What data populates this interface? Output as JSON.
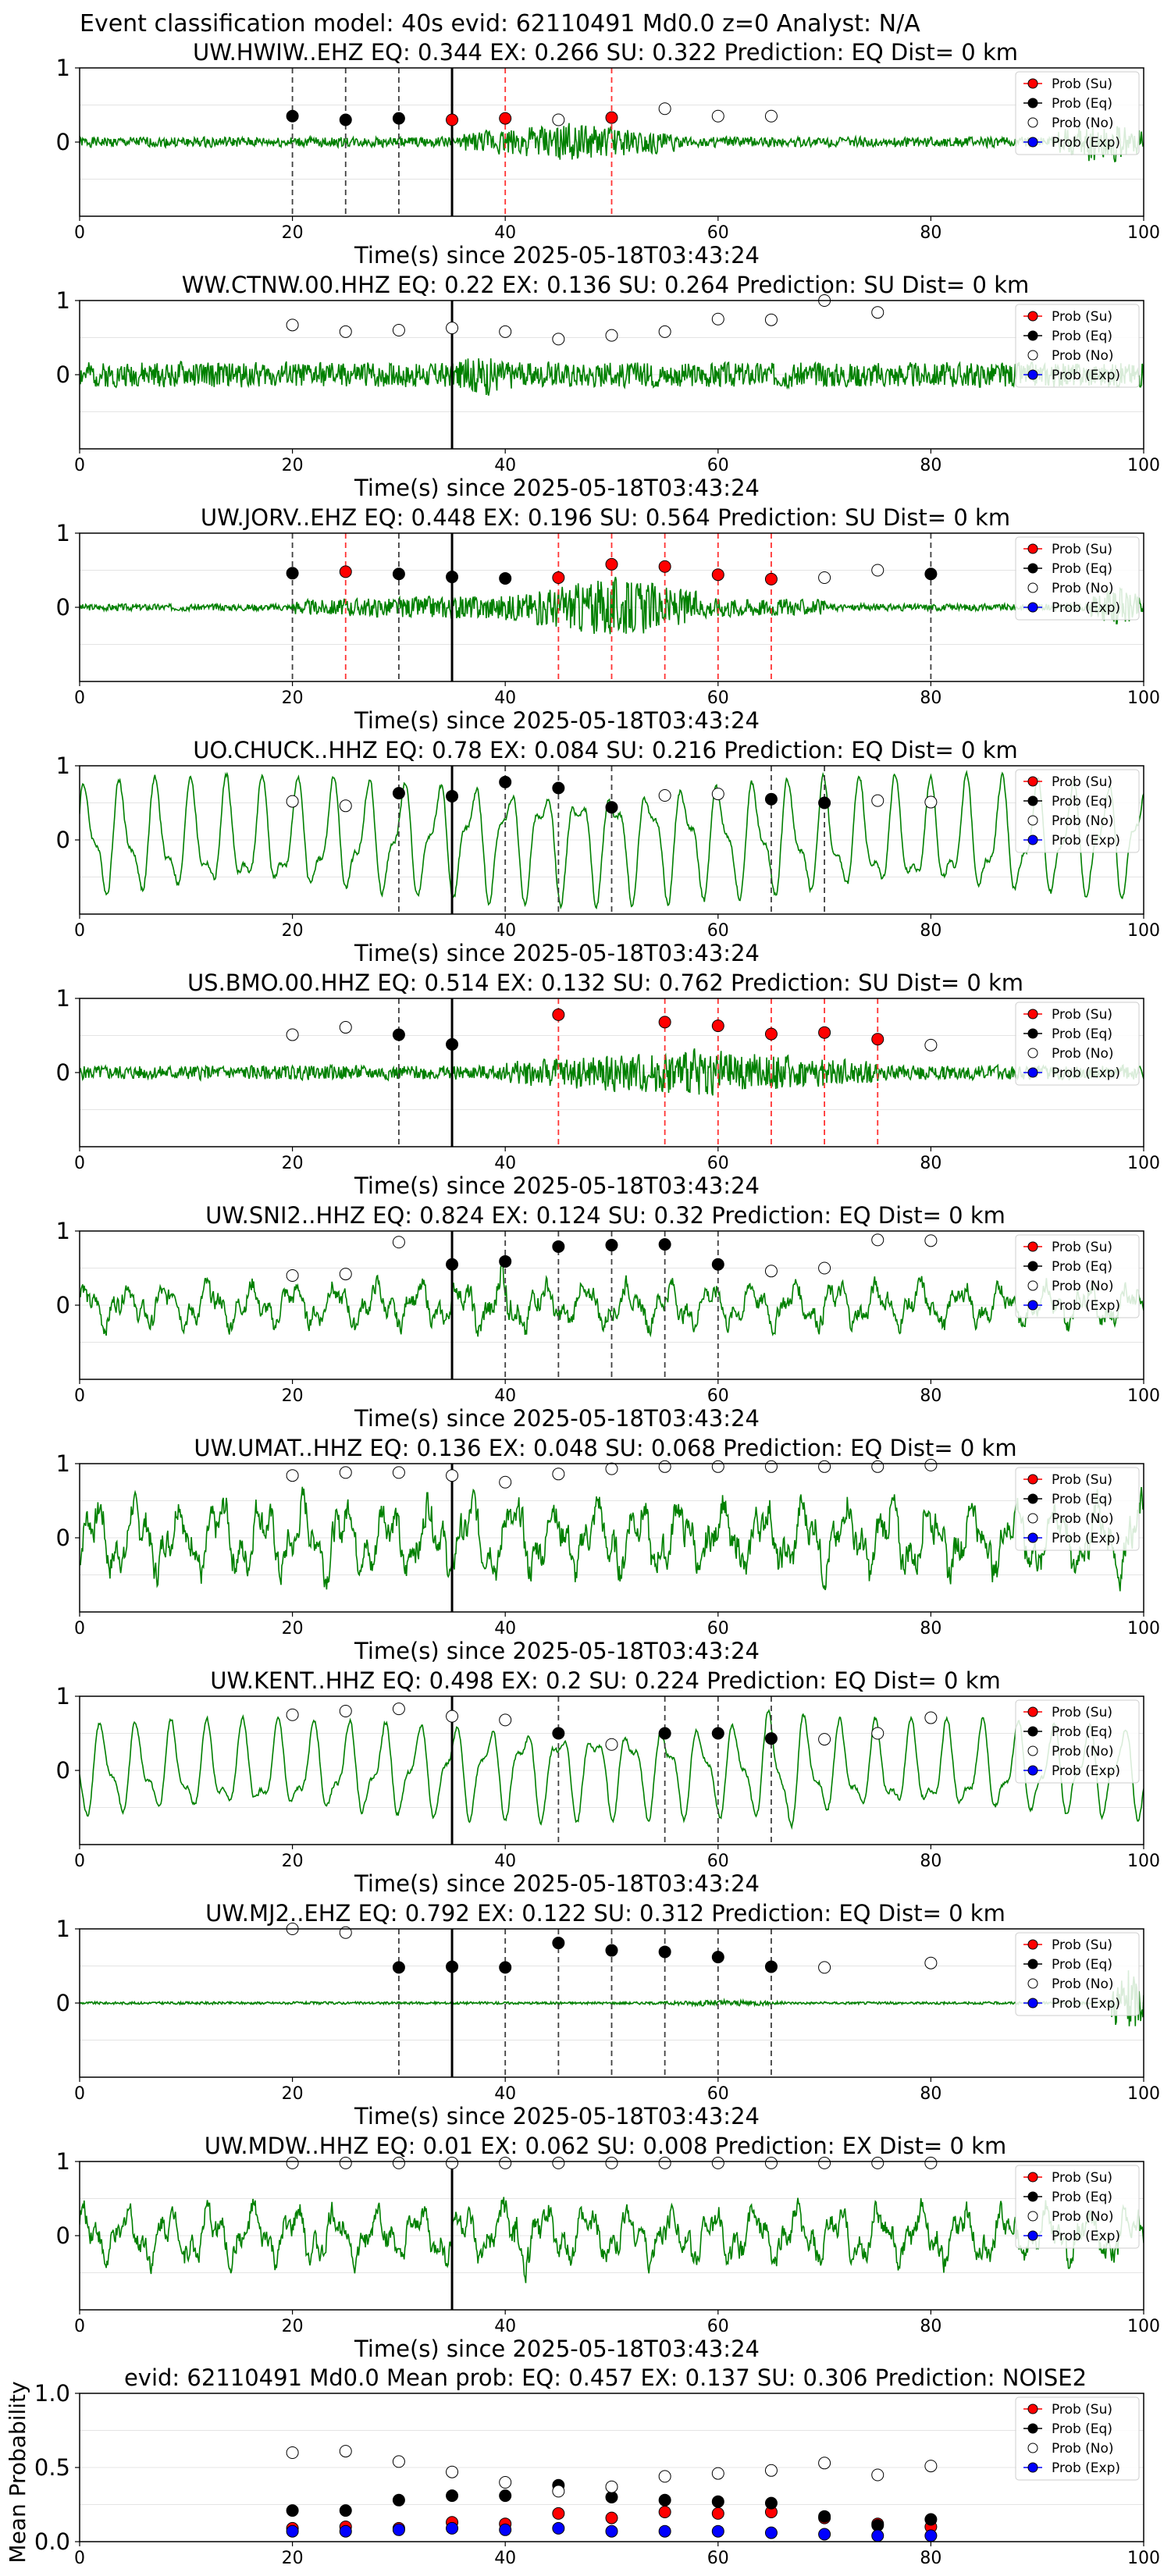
{
  "figure_title": "Event classification model: 40s evid: 62110491 Md0.0 z=0 Analyst: N/A",
  "legend_labels": [
    "Prob (Su)",
    "Prob (Eq)",
    "Prob (No)",
    "Prob (Exp)"
  ],
  "colors": {
    "su": "#ff0000",
    "eq": "#000000",
    "no": "#ffffff",
    "exp": "#0000ff",
    "waveform": "#008000",
    "su_line": "#ff3333",
    "eq_line": "#404040"
  },
  "chart_data": [
    {
      "type": "line",
      "title": "UW.HWIW..EHZ   EQ: 0.344   EX: 0.266   SU: 0.322   Prediction: EQ    Dist= 0 km",
      "xlabel": "Time(s) since 2025-05-18T03:43:24",
      "xlim": [
        0,
        100
      ],
      "ylim": [
        -1,
        1
      ],
      "xticks": [
        "0",
        "20",
        "40",
        "60",
        "80",
        "100"
      ],
      "yticks": [
        "0",
        "1"
      ],
      "waveform": {
        "style": "noisy",
        "seed": 1,
        "amp": 0.12,
        "burst": [
          [
            36,
            56,
            0.45
          ],
          [
            92,
            100,
            0.55
          ]
        ]
      },
      "origin_line": 35,
      "eq_lines": [
        20,
        25,
        30
      ],
      "su_lines": [
        40,
        50
      ],
      "series": [
        {
          "name": "Prob (Su)",
          "x": [
            35,
            40,
            50
          ],
          "y": [
            0.3,
            0.32,
            0.33
          ]
        },
        {
          "name": "Prob (Eq)",
          "x": [
            20,
            25,
            30
          ],
          "y": [
            0.35,
            0.3,
            0.32
          ]
        },
        {
          "name": "Prob (No)",
          "x": [
            45,
            55,
            60,
            65
          ],
          "y": [
            0.3,
            0.45,
            0.35,
            0.35
          ]
        },
        {
          "name": "Prob (Exp)",
          "x": [],
          "y": []
        }
      ]
    },
    {
      "type": "line",
      "title": "WW.CTNW.00.HHZ   EQ: 0.22  EX: 0.136  SU: 0.264   Prediction: SU    Dist= 0 km",
      "xlabel": "Time(s) since 2025-05-18T03:43:24",
      "xlim": [
        0,
        100
      ],
      "ylim": [
        -1,
        1
      ],
      "xticks": [
        "0",
        "20",
        "40",
        "60",
        "80",
        "100"
      ],
      "yticks": [
        "0",
        "1"
      ],
      "waveform": {
        "style": "noisy",
        "seed": 2,
        "amp": 0.3,
        "burst": [
          [
            34,
            42,
            0.5
          ]
        ]
      },
      "origin_line": 35,
      "eq_lines": [],
      "su_lines": [],
      "series": [
        {
          "name": "Prob (Su)",
          "x": [],
          "y": []
        },
        {
          "name": "Prob (Eq)",
          "x": [],
          "y": []
        },
        {
          "name": "Prob (No)",
          "x": [
            20,
            25,
            30,
            35,
            40,
            45,
            50,
            55,
            60,
            65,
            70,
            75
          ],
          "y": [
            0.67,
            0.58,
            0.6,
            0.63,
            0.58,
            0.48,
            0.53,
            0.58,
            0.75,
            0.74,
            1.0,
            0.84
          ]
        },
        {
          "name": "Prob (Exp)",
          "x": [],
          "y": []
        }
      ]
    },
    {
      "type": "line",
      "title": "UW.JORV..EHZ   EQ: 0.448  EX: 0.196  SU: 0.564   Prediction: SU    Dist= 0 km",
      "xlabel": "Time(s) since 2025-05-18T03:43:24",
      "xlim": [
        0,
        100
      ],
      "ylim": [
        -1,
        1
      ],
      "xticks": [
        "0",
        "20",
        "40",
        "60",
        "80",
        "100"
      ],
      "yticks": [
        "0",
        "1"
      ],
      "waveform": {
        "style": "noisy",
        "seed": 3,
        "amp": 0.08,
        "burst": [
          [
            20,
            70,
            0.35
          ],
          [
            42,
            58,
            0.75
          ],
          [
            95,
            100,
            0.5
          ]
        ]
      },
      "origin_line": 35,
      "eq_lines": [
        20,
        30,
        80
      ],
      "su_lines": [
        25,
        45,
        50,
        55,
        60,
        65
      ],
      "series": [
        {
          "name": "Prob (Su)",
          "x": [
            25,
            45,
            50,
            55,
            60,
            65
          ],
          "y": [
            0.48,
            0.4,
            0.58,
            0.55,
            0.44,
            0.38
          ]
        },
        {
          "name": "Prob (Eq)",
          "x": [
            20,
            30,
            35,
            40,
            80
          ],
          "y": [
            0.46,
            0.45,
            0.41,
            0.39,
            0.45
          ]
        },
        {
          "name": "Prob (No)",
          "x": [
            70,
            75
          ],
          "y": [
            0.4,
            0.5
          ]
        },
        {
          "name": "Prob (Exp)",
          "x": [],
          "y": []
        }
      ]
    },
    {
      "type": "line",
      "title": "UO.CHUCK..HHZ   EQ: 0.78  EX: 0.084  SU: 0.216   Prediction: EQ    Dist= 0 km",
      "xlabel": "Time(s) since 2025-05-18T03:43:24",
      "xlim": [
        0,
        100
      ],
      "ylim": [
        -1,
        1
      ],
      "xticks": [
        "0",
        "20",
        "40",
        "60",
        "80",
        "100"
      ],
      "yticks": [
        "0",
        "1"
      ],
      "waveform": {
        "style": "smooth",
        "seed": 4,
        "amp": 0.75,
        "burst": []
      },
      "origin_line": 35,
      "eq_lines": [
        30,
        40,
        45,
        50,
        65,
        70
      ],
      "su_lines": [],
      "series": [
        {
          "name": "Prob (Su)",
          "x": [],
          "y": []
        },
        {
          "name": "Prob (Eq)",
          "x": [
            30,
            35,
            40,
            45,
            50,
            65,
            70
          ],
          "y": [
            0.63,
            0.59,
            0.78,
            0.7,
            0.44,
            0.55,
            0.5
          ]
        },
        {
          "name": "Prob (No)",
          "x": [
            20,
            25,
            55,
            60,
            75,
            80
          ],
          "y": [
            0.52,
            0.46,
            0.6,
            0.62,
            0.53,
            0.51
          ]
        },
        {
          "name": "Prob (Exp)",
          "x": [],
          "y": []
        }
      ]
    },
    {
      "type": "line",
      "title": "US.BMO.00.HHZ   EQ: 0.514  EX: 0.132  SU: 0.762   Prediction: SU    Dist= 0 km",
      "xlabel": "Time(s) since 2025-05-18T03:43:24",
      "xlim": [
        0,
        100
      ],
      "ylim": [
        -1,
        1
      ],
      "xticks": [
        "0",
        "20",
        "40",
        "60",
        "80",
        "100"
      ],
      "yticks": [
        "0",
        "1"
      ],
      "waveform": {
        "style": "noisy",
        "seed": 5,
        "amp": 0.17,
        "burst": [
          [
            40,
            75,
            0.55
          ]
        ]
      },
      "origin_line": 35,
      "eq_lines": [
        30
      ],
      "su_lines": [
        45,
        55,
        60,
        65,
        70,
        75
      ],
      "series": [
        {
          "name": "Prob (Su)",
          "x": [
            45,
            55,
            60,
            65,
            70,
            75
          ],
          "y": [
            0.78,
            0.68,
            0.63,
            0.52,
            0.54,
            0.45
          ]
        },
        {
          "name": "Prob (Eq)",
          "x": [
            30,
            35
          ],
          "y": [
            0.51,
            0.38
          ]
        },
        {
          "name": "Prob (No)",
          "x": [
            20,
            25,
            80
          ],
          "y": [
            0.51,
            0.61,
            0.37
          ]
        },
        {
          "name": "Prob (Exp)",
          "x": [],
          "y": []
        }
      ]
    },
    {
      "type": "line",
      "title": "UW.SNI2..HHZ   EQ: 0.824  EX: 0.124  SU: 0.32   Prediction: EQ    Dist= 0 km",
      "xlabel": "Time(s) since 2025-05-18T03:43:24",
      "xlim": [
        0,
        100
      ],
      "ylim": [
        -1,
        1
      ],
      "xticks": [
        "0",
        "20",
        "40",
        "60",
        "80",
        "100"
      ],
      "yticks": [
        "0",
        "1"
      ],
      "waveform": {
        "style": "mixed",
        "seed": 6,
        "amp": 0.35,
        "burst": [
          [
            35,
            45,
            0.6
          ]
        ]
      },
      "origin_line": 35,
      "eq_lines": [
        40,
        45,
        50,
        55,
        60
      ],
      "su_lines": [],
      "series": [
        {
          "name": "Prob (Su)",
          "x": [],
          "y": []
        },
        {
          "name": "Prob (Eq)",
          "x": [
            35,
            40,
            45,
            50,
            55,
            60
          ],
          "y": [
            0.55,
            0.59,
            0.79,
            0.81,
            0.82,
            0.55
          ]
        },
        {
          "name": "Prob (No)",
          "x": [
            20,
            25,
            30,
            65,
            70,
            75,
            80
          ],
          "y": [
            0.4,
            0.42,
            0.85,
            0.46,
            0.5,
            0.88,
            0.87
          ]
        },
        {
          "name": "Prob (Exp)",
          "x": [],
          "y": []
        }
      ]
    },
    {
      "type": "line",
      "title": "UW.UMAT..HHZ   EQ: 0.136  EX: 0.048  SU: 0.068   Prediction: EQ    Dist= 0 km",
      "xlabel": "Time(s) since 2025-05-18T03:43:24",
      "xlim": [
        0,
        100
      ],
      "ylim": [
        -1,
        1
      ],
      "xticks": [
        "0",
        "20",
        "40",
        "60",
        "80",
        "100"
      ],
      "yticks": [
        "0",
        "1"
      ],
      "waveform": {
        "style": "mixed",
        "seed": 7,
        "amp": 0.6,
        "burst": []
      },
      "origin_line": 35,
      "eq_lines": [],
      "su_lines": [],
      "series": [
        {
          "name": "Prob (Su)",
          "x": [],
          "y": []
        },
        {
          "name": "Prob (Eq)",
          "x": [],
          "y": []
        },
        {
          "name": "Prob (No)",
          "x": [
            20,
            25,
            30,
            35,
            40,
            45,
            50,
            55,
            60,
            65,
            70,
            75,
            80
          ],
          "y": [
            0.84,
            0.88,
            0.88,
            0.84,
            0.75,
            0.86,
            0.93,
            0.96,
            0.96,
            0.96,
            0.96,
            0.96,
            0.98
          ]
        },
        {
          "name": "Prob (Exp)",
          "x": [],
          "y": []
        }
      ]
    },
    {
      "type": "line",
      "title": "UW.KENT..HHZ   EQ: 0.498  EX: 0.2  SU: 0.224   Prediction: EQ    Dist= 0 km",
      "xlabel": "Time(s) since 2025-05-18T03:43:24",
      "xlim": [
        0,
        100
      ],
      "ylim": [
        -1,
        1
      ],
      "xticks": [
        "0",
        "20",
        "40",
        "60",
        "80",
        "100"
      ],
      "yticks": [
        "0",
        "1"
      ],
      "waveform": {
        "style": "smooth",
        "seed": 8,
        "amp": 0.6,
        "burst": [
          [
            62,
            70,
            0.9
          ]
        ]
      },
      "origin_line": 35,
      "eq_lines": [
        45,
        55,
        60,
        65
      ],
      "su_lines": [],
      "series": [
        {
          "name": "Prob (Su)",
          "x": [],
          "y": []
        },
        {
          "name": "Prob (Eq)",
          "x": [
            45,
            55,
            60,
            65
          ],
          "y": [
            0.5,
            0.5,
            0.5,
            0.43
          ]
        },
        {
          "name": "Prob (No)",
          "x": [
            20,
            25,
            30,
            35,
            40,
            50,
            70,
            75,
            80
          ],
          "y": [
            0.75,
            0.8,
            0.83,
            0.73,
            0.68,
            0.35,
            0.42,
            0.5,
            0.71
          ]
        },
        {
          "name": "Prob (Exp)",
          "x": [],
          "y": []
        }
      ]
    },
    {
      "type": "line",
      "title": "UW.MJ2..EHZ   EQ: 0.792  EX: 0.122  SU: 0.312   Prediction: EQ    Dist= 0 km",
      "xlabel": "Time(s) since 2025-05-18T03:43:24",
      "xlim": [
        0,
        100
      ],
      "ylim": [
        -1,
        1
      ],
      "xticks": [
        "0",
        "20",
        "40",
        "60",
        "80",
        "100"
      ],
      "yticks": [
        "0",
        "1"
      ],
      "waveform": {
        "style": "noisy",
        "seed": 9,
        "amp": 0.03,
        "burst": [
          [
            55,
            66,
            0.08
          ],
          [
            97,
            100,
            0.9
          ]
        ]
      },
      "origin_line": 35,
      "eq_lines": [
        30,
        40,
        45,
        50,
        55,
        60,
        65
      ],
      "su_lines": [],
      "series": [
        {
          "name": "Prob (Su)",
          "x": [],
          "y": []
        },
        {
          "name": "Prob (Eq)",
          "x": [
            30,
            35,
            40,
            45,
            50,
            55,
            60,
            65
          ],
          "y": [
            0.48,
            0.49,
            0.48,
            0.81,
            0.71,
            0.69,
            0.62,
            0.49
          ]
        },
        {
          "name": "Prob (No)",
          "x": [
            20,
            25,
            70,
            80
          ],
          "y": [
            1.0,
            0.95,
            0.48,
            0.54
          ]
        },
        {
          "name": "Prob (Exp)",
          "x": [],
          "y": []
        }
      ]
    },
    {
      "type": "line",
      "title": "UW.MDW..HHZ   EQ: 0.01  EX: 0.062  SU: 0.008   Prediction: EX    Dist= 0 km",
      "xlabel": "Time(s) since 2025-05-18T03:43:24",
      "xlim": [
        0,
        100
      ],
      "ylim": [
        -1,
        1
      ],
      "xticks": [
        "0",
        "20",
        "40",
        "60",
        "80",
        "100"
      ],
      "yticks": [
        "0",
        "1"
      ],
      "waveform": {
        "style": "mixed",
        "seed": 10,
        "amp": 0.45,
        "burst": [
          [
            38,
            44,
            0.7
          ]
        ]
      },
      "origin_line": 35,
      "eq_lines": [],
      "su_lines": [],
      "series": [
        {
          "name": "Prob (Su)",
          "x": [],
          "y": []
        },
        {
          "name": "Prob (Eq)",
          "x": [],
          "y": []
        },
        {
          "name": "Prob (No)",
          "x": [
            20,
            25,
            30,
            35,
            40,
            45,
            50,
            55,
            60,
            65,
            70,
            75,
            80
          ],
          "y": [
            0.98,
            0.98,
            0.98,
            0.98,
            0.98,
            0.98,
            0.98,
            0.98,
            0.98,
            0.98,
            0.98,
            0.98,
            0.98
          ]
        },
        {
          "name": "Prob (Exp)",
          "x": [],
          "y": []
        }
      ]
    },
    {
      "type": "scatter",
      "title": "evid: 62110491   Md0.0   Mean prob:   EQ: 0.457   EX: 0.137   SU: 0.306   Prediction: NOISE2",
      "xlabel": "",
      "ylabel": "Mean Probability",
      "xlim": [
        0,
        100
      ],
      "ylim": [
        0,
        1
      ],
      "xticks": [
        "0",
        "20",
        "40",
        "60",
        "80",
        "100"
      ],
      "yticks": [
        "0.0",
        "0.5",
        "1.0"
      ],
      "grid": true,
      "series": [
        {
          "name": "Prob (Su)",
          "x": [
            20,
            25,
            30,
            35,
            40,
            45,
            50,
            55,
            60,
            65,
            70,
            75,
            80
          ],
          "y": [
            0.09,
            0.1,
            0.09,
            0.13,
            0.12,
            0.19,
            0.16,
            0.2,
            0.19,
            0.2,
            0.16,
            0.12,
            0.1
          ]
        },
        {
          "name": "Prob (Eq)",
          "x": [
            20,
            25,
            30,
            35,
            40,
            45,
            50,
            55,
            60,
            65,
            70,
            75,
            80
          ],
          "y": [
            0.21,
            0.21,
            0.28,
            0.31,
            0.31,
            0.38,
            0.3,
            0.28,
            0.27,
            0.26,
            0.17,
            0.11,
            0.15
          ]
        },
        {
          "name": "Prob (No)",
          "x": [
            20,
            25,
            30,
            35,
            40,
            45,
            50,
            55,
            60,
            65,
            70,
            75,
            80
          ],
          "y": [
            0.6,
            0.61,
            0.54,
            0.47,
            0.4,
            0.34,
            0.37,
            0.44,
            0.46,
            0.48,
            0.53,
            0.45,
            0.51
          ]
        },
        {
          "name": "Prob (Exp)",
          "x": [
            20,
            25,
            30,
            35,
            40,
            45,
            50,
            55,
            60,
            65,
            70,
            75,
            80
          ],
          "y": [
            0.07,
            0.07,
            0.08,
            0.09,
            0.08,
            0.09,
            0.07,
            0.07,
            0.07,
            0.06,
            0.05,
            0.04,
            0.04
          ]
        }
      ]
    }
  ]
}
